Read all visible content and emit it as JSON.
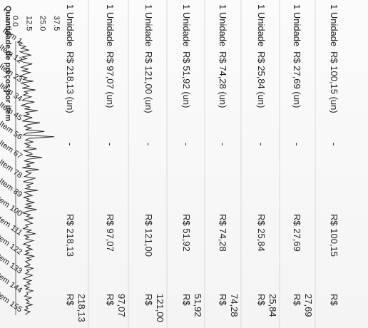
{
  "chart": {
    "title": "Quantidade de preços por item",
    "y_ticks": [
      "37.5",
      "25.0",
      "12.5",
      "0.0"
    ],
    "x_ticks": [
      "Item 1",
      "Item 12",
      "Item 23",
      "Item 34",
      "Item 45",
      "Item 56",
      "Item 67",
      "Item 78",
      "Item 89",
      "Item 100",
      "Item 111",
      "Item 122",
      "Item 133",
      "Item 144",
      "Item 155"
    ]
  },
  "chart_data": {
    "type": "line",
    "title": "Quantidade de preços por item",
    "xlabel": "",
    "ylabel": "",
    "ylim": [
      0,
      37.5
    ],
    "series": [
      {
        "values": [
          2,
          6,
          3,
          9,
          5,
          12,
          4,
          8,
          14,
          6,
          10,
          3,
          7,
          15,
          9,
          5,
          11,
          6,
          13,
          8,
          4,
          10,
          7,
          16,
          5,
          9,
          12,
          6,
          18,
          8,
          11,
          7,
          14,
          9,
          6,
          17,
          10,
          5,
          13,
          8,
          20,
          9,
          12,
          7,
          15,
          10,
          6,
          22,
          11,
          8,
          14,
          9,
          26,
          10,
          7,
          35,
          12,
          9,
          16,
          8,
          13,
          10,
          19,
          7,
          12,
          15,
          9,
          24,
          11,
          8,
          17,
          10,
          13,
          6,
          21,
          9,
          14,
          11,
          8,
          18,
          12,
          7,
          16,
          10,
          13,
          9,
          20,
          8,
          11,
          15,
          7,
          12,
          10,
          17,
          9,
          14,
          8,
          19,
          11,
          6,
          13,
          10,
          16,
          8,
          12,
          15,
          9,
          11,
          7,
          14,
          10,
          18,
          8,
          12,
          9,
          16,
          11,
          7,
          13,
          10,
          15,
          9,
          12,
          8,
          17,
          10,
          14,
          9,
          11,
          13,
          8,
          16,
          10,
          12,
          9,
          15,
          11,
          7,
          14,
          10,
          13,
          8,
          12,
          9,
          16,
          10,
          11,
          8,
          14,
          9,
          12,
          10,
          15,
          9,
          11,
          8,
          13,
          10,
          9
        ]
      }
    ]
  },
  "rows": [
    {
      "qty": "1 Unidade",
      "unit_price": "R$ 218,13 (un)",
      "dash": "-",
      "price": "R$ 218,13",
      "total_prefix": "R$",
      "total_value": "218,13"
    },
    {
      "qty": "1 Unidade",
      "unit_price": "R$ 97,07 (un)",
      "dash": "-",
      "price": "R$ 97,07",
      "total_prefix": "R$",
      "total_value": "97,07"
    },
    {
      "qty": "1 Unidade",
      "unit_price": "R$ 121,00 (un)",
      "dash": "-",
      "price": "R$ 121,00",
      "total_prefix": "R$",
      "total_value": "121,00"
    },
    {
      "qty": "1 Unidade",
      "unit_price": "R$ 51,92 (un)",
      "dash": "-",
      "price": "R$ 51,92",
      "total_prefix": "R$",
      "total_value": "51,92"
    },
    {
      "qty": "1 Unidade",
      "unit_price": "R$ 74,28 (un)",
      "dash": "-",
      "price": "R$ 74,28",
      "total_prefix": "R$",
      "total_value": "74,28"
    },
    {
      "qty": "1 Unidade",
      "unit_price": "R$ 25,84 (un)",
      "dash": "-",
      "price": "R$ 25,84",
      "total_prefix": "R$",
      "total_value": "25,84"
    },
    {
      "qty": "1 Unidade",
      "unit_price": "R$ 27,69 (un)",
      "dash": "-",
      "price": "R$ 27,69",
      "total_prefix": "R$",
      "total_value": "27,69"
    },
    {
      "qty": "1 Unidade",
      "unit_price": "R$ 100,15 (un)",
      "dash": "-",
      "price": "R$ 100,15",
      "total_prefix": "R$",
      "total_value": ""
    }
  ]
}
